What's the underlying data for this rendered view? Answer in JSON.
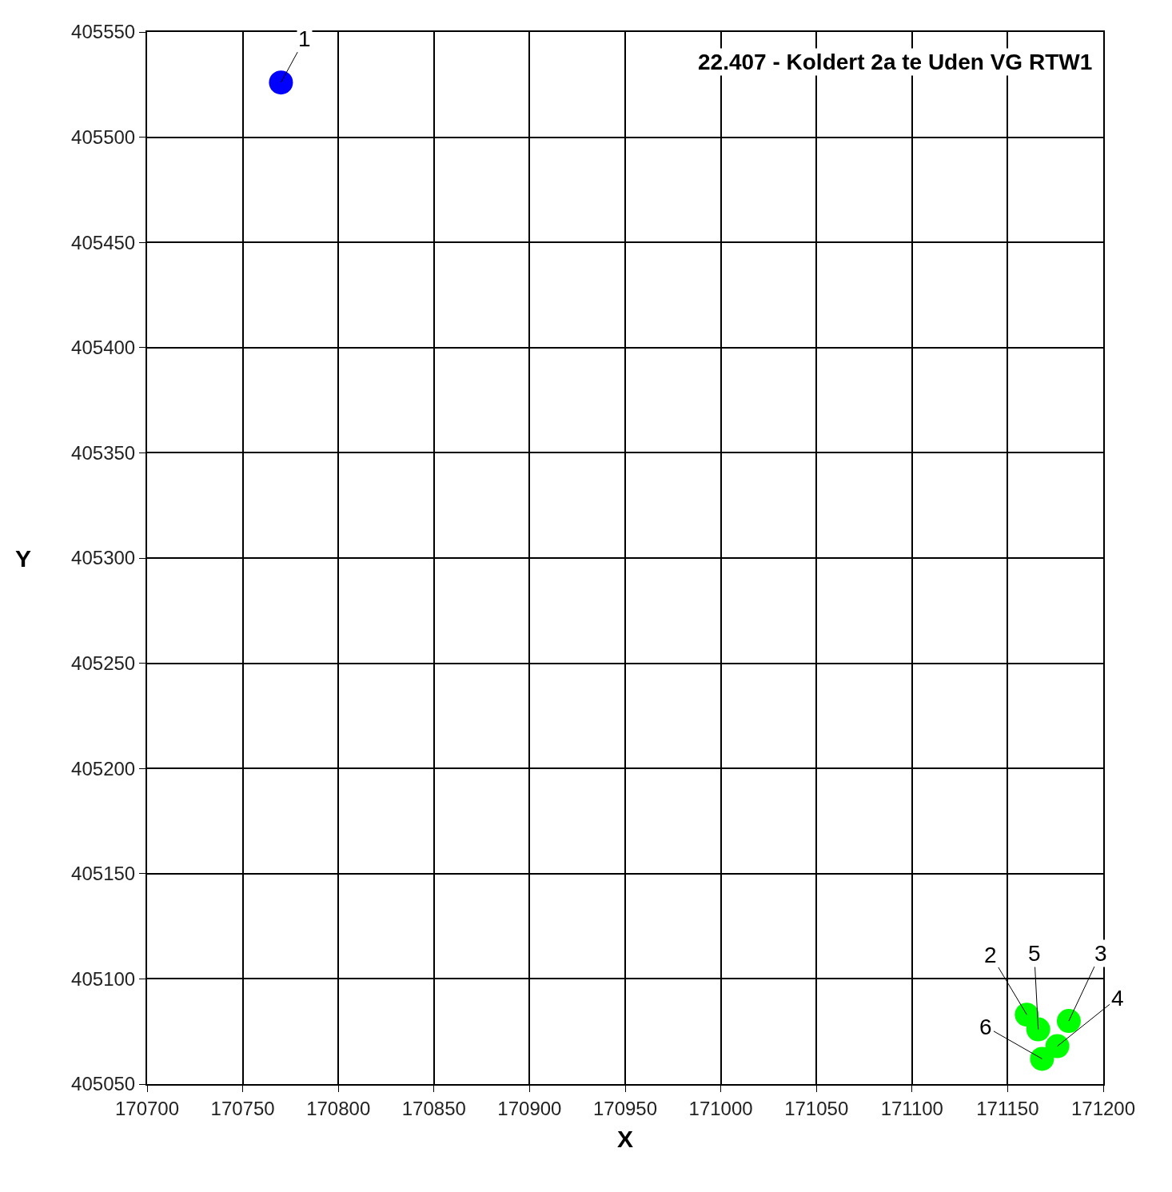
{
  "chart_data": {
    "type": "scatter",
    "title": "22.407 - Koldert 2a te Uden VG RTW1",
    "xlabel": "X",
    "ylabel": "Y",
    "x": [
      170770,
      171160,
      171182,
      171176,
      171166,
      171168
    ],
    "values": [
      405526,
      405083,
      405080,
      405068,
      405076,
      405062
    ],
    "colors": [
      "#0000ff",
      "#00ff00",
      "#00ff00",
      "#00ff00",
      "#00ff00",
      "#00ff00"
    ],
    "annotations": [
      {
        "text": "1",
        "x": 170770,
        "y": 405526
      },
      {
        "text": "2",
        "x": 171160,
        "y": 405083
      },
      {
        "text": "3",
        "x": 171182,
        "y": 405080
      },
      {
        "text": "4",
        "x": 171176,
        "y": 405068
      },
      {
        "text": "5",
        "x": 171166,
        "y": 405076
      },
      {
        "text": "6",
        "x": 171168,
        "y": 405062
      }
    ],
    "marker": "circle",
    "xlim": [
      170700,
      171200
    ],
    "xticks": [
      170700,
      170750,
      170800,
      170850,
      170900,
      170950,
      171000,
      171050,
      171100,
      171150,
      171200
    ],
    "ylim": [
      405050,
      405550
    ],
    "yticks": [
      405050,
      405100,
      405150,
      405200,
      405250,
      405300,
      405350,
      405400,
      405450,
      405500,
      405550
    ],
    "grid": true
  }
}
